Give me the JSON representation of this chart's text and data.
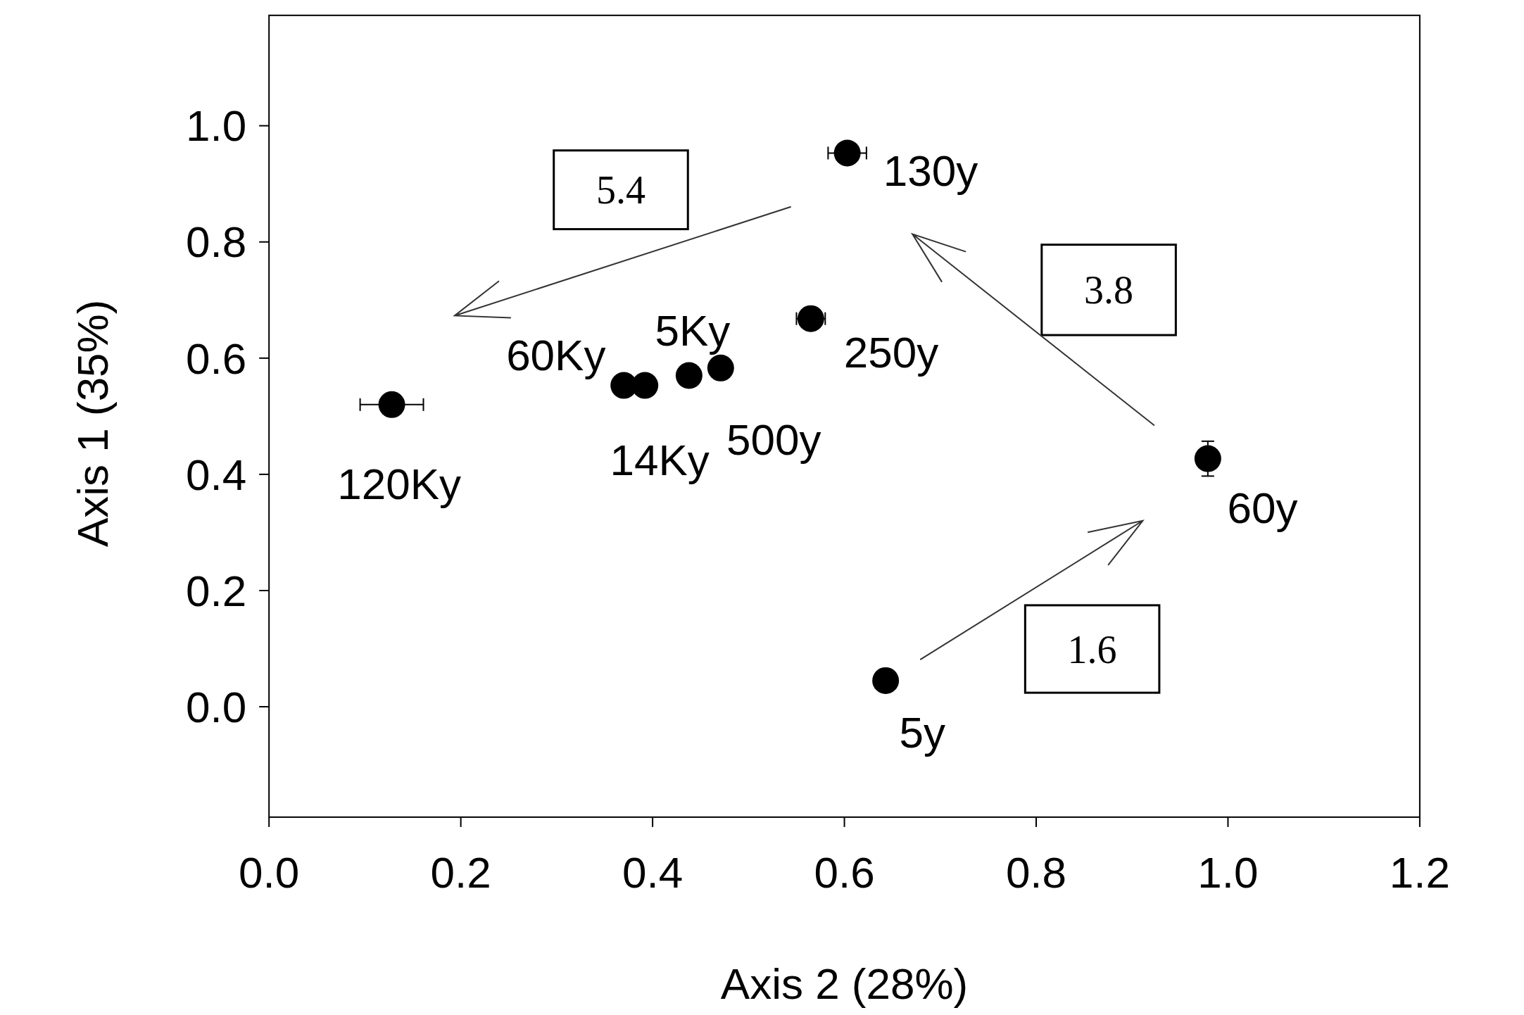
{
  "chart_data": {
    "type": "scatter",
    "xlabel": "Axis 2 (28%)",
    "ylabel": "Axis 1 (35%)",
    "xlim": [
      0,
      1.2
    ],
    "xticks": [
      {
        "value": 0,
        "label": "0.0"
      },
      0.2,
      0.4,
      0.6,
      0.8,
      {
        "value": 1,
        "label": "1.0"
      },
      1.2
    ],
    "ylim": [
      -0.19,
      1.19
    ],
    "yticks": [
      {
        "value": 0,
        "label": "0.0"
      },
      0.2,
      0.4,
      0.6,
      0.8,
      {
        "value": 1,
        "label": "1.0"
      }
    ],
    "marker": "circle",
    "grid": false,
    "series": [
      {
        "color": "#000000",
        "x": [
          0.128,
          0.37,
          0.392,
          0.438,
          0.471,
          0.565,
          0.603,
          0.979,
          0.643
        ],
        "values": [
          0.52,
          0.553,
          0.553,
          0.57,
          0.583,
          0.668,
          0.953,
          0.427,
          0.045
        ],
        "errors": [
          null,
          null,
          null,
          null,
          null,
          null,
          null,
          0.03,
          null
        ],
        "xerrors": [
          0.033,
          null,
          null,
          null,
          null,
          0.015,
          0.02,
          null,
          null
        ]
      }
    ],
    "annotations": [
      {
        "text": "120Ky",
        "x": 0.128,
        "y": 0.52
      },
      {
        "text": "60Ky",
        "x": 0.37,
        "y": 0.553
      },
      {
        "text": "14Ky",
        "x": 0.392,
        "y": 0.553
      },
      {
        "text": "5Ky",
        "x": 0.438,
        "y": 0.57
      },
      {
        "text": "500y",
        "x": 0.471,
        "y": 0.583
      },
      {
        "text": "250y",
        "x": 0.565,
        "y": 0.668
      },
      {
        "text": "130y",
        "x": 0.603,
        "y": 0.953
      },
      {
        "text": "60y",
        "x": 0.979,
        "y": 0.427
      },
      {
        "text": "5y",
        "x": 0.643,
        "y": 0.045
      },
      "5.4",
      "3.8",
      "1.6"
    ]
  }
}
